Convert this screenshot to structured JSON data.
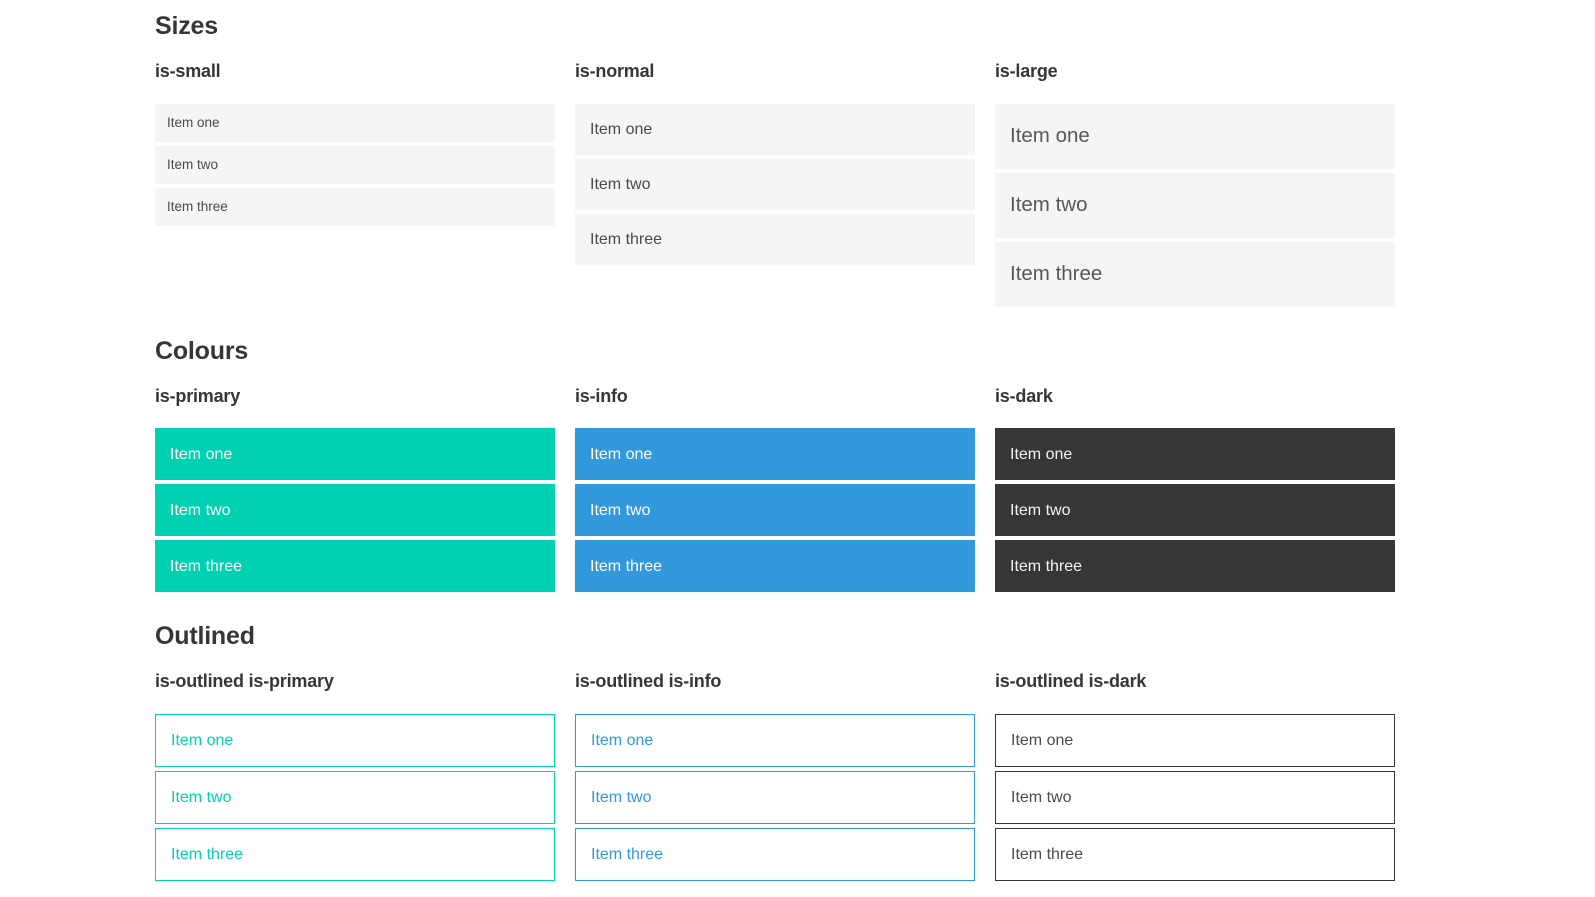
{
  "sections": [
    {
      "title": "Sizes",
      "columns": [
        {
          "label": "is-small",
          "items": [
            "Item one",
            "Item two",
            "Item three"
          ]
        },
        {
          "label": "is-normal",
          "items": [
            "Item one",
            "Item two",
            "Item three"
          ]
        },
        {
          "label": "is-large",
          "items": [
            "Item one",
            "Item two",
            "Item three"
          ]
        }
      ]
    },
    {
      "title": "Colours",
      "columns": [
        {
          "label": "is-primary",
          "items": [
            "Item one",
            "Item two",
            "Item three"
          ]
        },
        {
          "label": "is-info",
          "items": [
            "Item one",
            "Item two",
            "Item three"
          ]
        },
        {
          "label": "is-dark",
          "items": [
            "Item one",
            "Item two",
            "Item three"
          ]
        }
      ]
    },
    {
      "title": "Outlined",
      "columns": [
        {
          "label": "is-outlined is-primary",
          "items": [
            "Item one",
            "Item two",
            "Item three"
          ]
        },
        {
          "label": "is-outlined is-info",
          "items": [
            "Item one",
            "Item two",
            "Item three"
          ]
        },
        {
          "label": "is-outlined is-dark",
          "items": [
            "Item one",
            "Item two",
            "Item three"
          ]
        }
      ]
    }
  ],
  "colors": {
    "primary": "#00d1b2",
    "info": "#3298dc",
    "dark": "#363636",
    "item_light_bg": "#f5f5f5",
    "item_text": "#4a4a4a",
    "heading_text": "#363636",
    "inverted_text": "#ffffff"
  }
}
